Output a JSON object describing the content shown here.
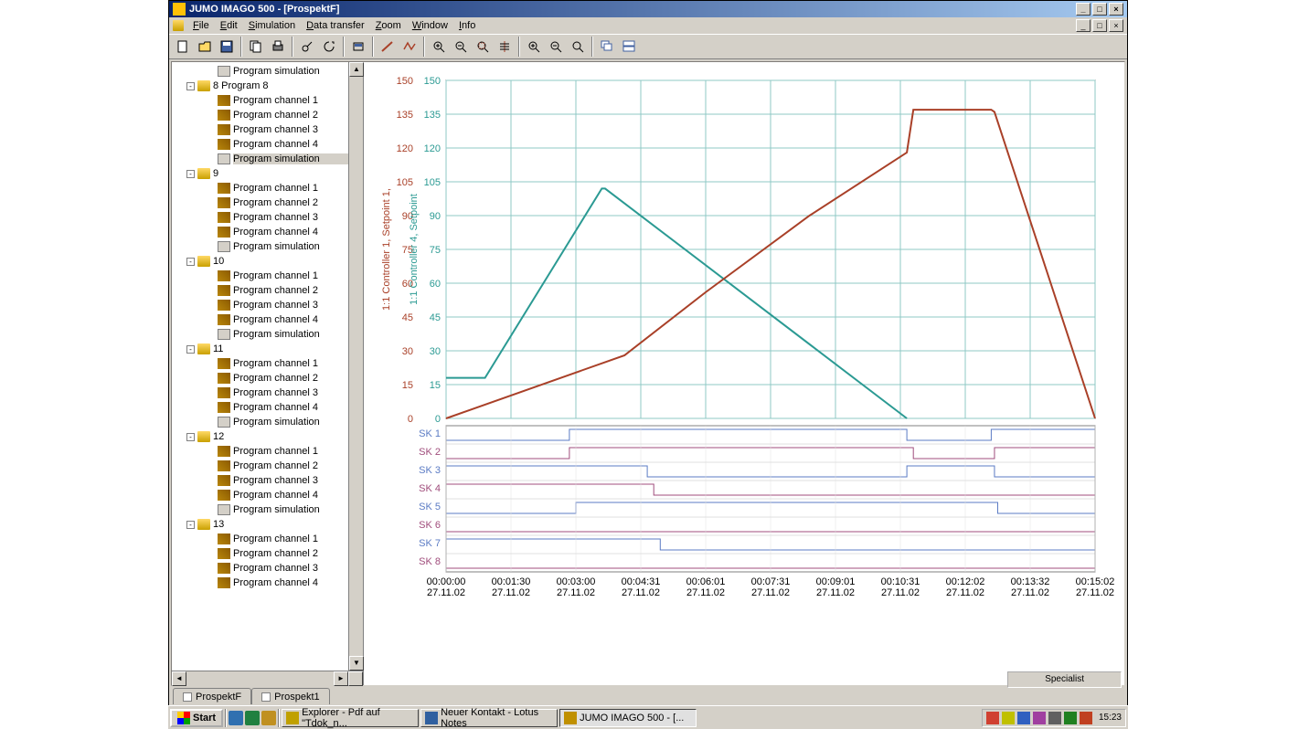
{
  "window": {
    "title": "JUMO IMAGO 500 - [ProspektF]",
    "menus": [
      "File",
      "Edit",
      "Simulation",
      "Data transfer",
      "Zoom",
      "Window",
      "Info"
    ]
  },
  "tree": {
    "top_item": "Program simulation",
    "groups": [
      {
        "name": "8 Program 8",
        "items": [
          "Program channel 1",
          "Program channel 2",
          "Program channel 3",
          "Program channel 4",
          "Program simulation"
        ],
        "selected_index": 4
      },
      {
        "name": "9",
        "items": [
          "Program channel 1",
          "Program channel 2",
          "Program channel 3",
          "Program channel 4",
          "Program simulation"
        ]
      },
      {
        "name": "10",
        "items": [
          "Program channel 1",
          "Program channel 2",
          "Program channel 3",
          "Program channel 4",
          "Program simulation"
        ]
      },
      {
        "name": "11",
        "items": [
          "Program channel 1",
          "Program channel 2",
          "Program channel 3",
          "Program channel 4",
          "Program simulation"
        ]
      },
      {
        "name": "12",
        "items": [
          "Program channel 1",
          "Program channel 2",
          "Program channel 3",
          "Program channel 4",
          "Program simulation"
        ]
      },
      {
        "name": "13",
        "items": [
          "Program channel 1",
          "Program channel 2",
          "Program channel 3",
          "Program channel 4"
        ]
      }
    ]
  },
  "chart": {
    "y_axis_1": {
      "label": "1:1 Controller 1, Setpoint 1,",
      "color": "#a94028",
      "min": 0,
      "max": 150,
      "step": 15,
      "ticks": [
        0,
        15,
        30,
        45,
        60,
        75,
        90,
        105,
        120,
        135,
        150
      ]
    },
    "y_axis_2": {
      "label": "1:1 Controller 4, Setpoint",
      "color": "#2b9a93",
      "min": 0,
      "max": 150,
      "step": 15,
      "ticks": [
        0,
        15,
        30,
        45,
        60,
        75,
        90,
        105,
        120,
        135,
        150
      ]
    },
    "x_axis": {
      "times": [
        "00:00:00",
        "00:01:30",
        "00:03:00",
        "00:04:31",
        "00:06:01",
        "00:07:31",
        "00:09:01",
        "00:10:31",
        "00:12:02",
        "00:13:32",
        "00:15:02"
      ],
      "date": "27.11.02"
    },
    "grid_color": "#2b9a93",
    "grid_color_light": "#8fc9c5",
    "background": "#ffffff",
    "series_1": {
      "color": "#a94028",
      "width": 2,
      "points": [
        [
          0,
          0
        ],
        [
          0.275,
          28
        ],
        [
          0.4,
          56
        ],
        [
          0.56,
          90
        ],
        [
          0.71,
          118
        ],
        [
          0.72,
          137
        ],
        [
          0.84,
          137
        ],
        [
          0.845,
          136
        ],
        [
          1.0,
          0
        ]
      ]
    },
    "series_2": {
      "color": "#2b9a93",
      "width": 2,
      "points": [
        [
          0,
          18
        ],
        [
          0.06,
          18
        ],
        [
          0.24,
          102
        ],
        [
          0.245,
          102
        ],
        [
          0.71,
          0
        ]
      ]
    },
    "digital_tracks": {
      "labels": [
        "SK 1",
        "SK 2",
        "SK 3",
        "SK 4",
        "SK 5",
        "SK 6",
        "SK 7",
        "SK 8"
      ],
      "colors": [
        "#5b7bc4",
        "#a04d7c",
        "#5b7bc4",
        "#a04d7c",
        "#5b7bc4",
        "#a04d7c",
        "#5b7bc4",
        "#a04d7c"
      ],
      "data": [
        [
          [
            0,
            0
          ],
          [
            0.19,
            0
          ],
          [
            0.19,
            1
          ],
          [
            0.71,
            1
          ],
          [
            0.71,
            0
          ],
          [
            0.84,
            0
          ],
          [
            0.84,
            1
          ],
          [
            1,
            1
          ]
        ],
        [
          [
            0,
            0
          ],
          [
            0.19,
            0
          ],
          [
            0.19,
            1
          ],
          [
            0.72,
            1
          ],
          [
            0.72,
            0
          ],
          [
            0.845,
            0
          ],
          [
            0.845,
            1
          ],
          [
            1,
            1
          ]
        ],
        [
          [
            0,
            1
          ],
          [
            0.31,
            1
          ],
          [
            0.31,
            0
          ],
          [
            0.71,
            0
          ],
          [
            0.71,
            1
          ],
          [
            0.845,
            1
          ],
          [
            0.845,
            0
          ],
          [
            1,
            0
          ]
        ],
        [
          [
            0,
            1
          ],
          [
            0.32,
            1
          ],
          [
            0.32,
            0
          ],
          [
            1,
            0
          ]
        ],
        [
          [
            0,
            0
          ],
          [
            0.2,
            0
          ],
          [
            0.2,
            1
          ],
          [
            0.85,
            1
          ],
          [
            0.85,
            0
          ],
          [
            1,
            0
          ]
        ],
        [
          [
            0,
            0
          ],
          [
            1,
            0
          ]
        ],
        [
          [
            0,
            1
          ],
          [
            0.33,
            1
          ],
          [
            0.33,
            0
          ],
          [
            1,
            0
          ]
        ],
        [
          [
            0,
            0
          ],
          [
            1,
            0
          ]
        ]
      ]
    }
  },
  "tabs": [
    "ProspektF",
    "Prospekt1"
  ],
  "status": "Specialist",
  "taskbar": {
    "start": "Start",
    "tasks": [
      {
        "label": "Explorer - Pdf auf \"Tdok_n...",
        "icon_color": "#c0a000"
      },
      {
        "label": "Neuer Kontakt - Lotus Notes",
        "icon_color": "#3060a0"
      },
      {
        "label": "JUMO IMAGO 500 - [...",
        "icon_color": "#c09000",
        "active": true
      }
    ],
    "clock": "15:23",
    "tray_icons": [
      "#d04030",
      "#c0c000",
      "#3060c0",
      "#a040a0",
      "#606060",
      "#208020",
      "#c04020"
    ]
  }
}
